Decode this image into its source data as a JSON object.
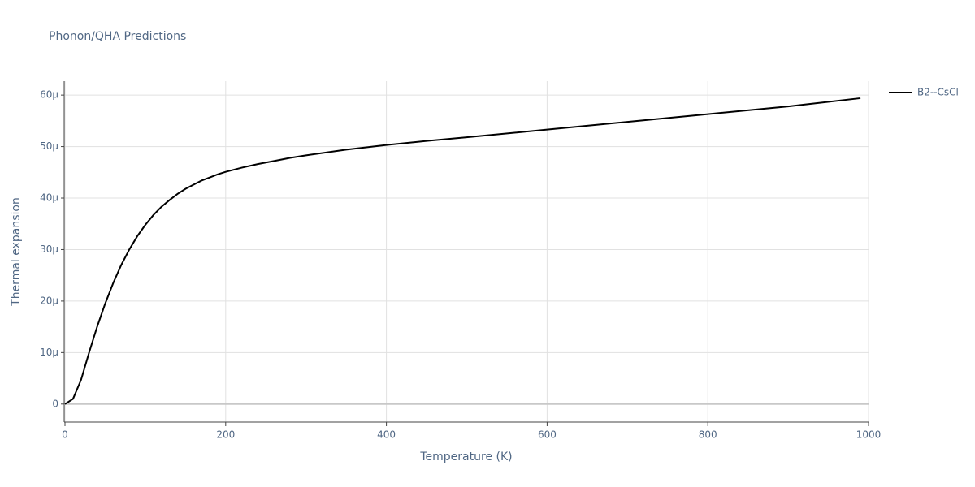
{
  "chart_data": {
    "type": "line",
    "title": "Phonon/QHA Predictions",
    "x_label": "Temperature (K)",
    "y_label": "Thermal expansion",
    "xlim": [
      0,
      1000
    ],
    "ylim": [
      -3.5e-06,
      6.27e-05
    ],
    "xticks": [
      0,
      200,
      400,
      600,
      800,
      1000
    ],
    "yticks": [
      0,
      {
        "value": 1e-05,
        "label": "10µ"
      },
      {
        "value": 2e-05,
        "label": "20µ"
      },
      {
        "value": 3e-05,
        "label": "30µ"
      },
      {
        "value": 4e-05,
        "label": "40µ"
      },
      {
        "value": 5e-05,
        "label": "50µ"
      },
      {
        "value": 6e-05,
        "label": "60µ"
      }
    ],
    "grid": true,
    "legend": "top-right",
    "series": [
      {
        "name": "B2--CsCl",
        "color": "#000000",
        "x": [
          0,
          10,
          20,
          30,
          40,
          50,
          60,
          70,
          80,
          90,
          100,
          110,
          120,
          130,
          140,
          150,
          160,
          170,
          180,
          190,
          200,
          220,
          240,
          260,
          280,
          300,
          350,
          400,
          450,
          500,
          600,
          700,
          800,
          900,
          990
        ],
        "values": [
          0,
          1e-06,
          4.7e-06,
          1e-05,
          1.5e-05,
          1.95e-05,
          2.35e-05,
          2.7e-05,
          3e-05,
          3.26e-05,
          3.48e-05,
          3.67e-05,
          3.83e-05,
          3.96e-05,
          4.08e-05,
          4.18e-05,
          4.26e-05,
          4.34e-05,
          4.4e-05,
          4.46e-05,
          4.51e-05,
          4.59e-05,
          4.66e-05,
          4.72e-05,
          4.78e-05,
          4.83e-05,
          4.94e-05,
          5.03e-05,
          5.11e-05,
          5.18e-05,
          5.33e-05,
          5.48e-05,
          5.63e-05,
          5.78e-05,
          5.94e-05
        ]
      }
    ]
  }
}
